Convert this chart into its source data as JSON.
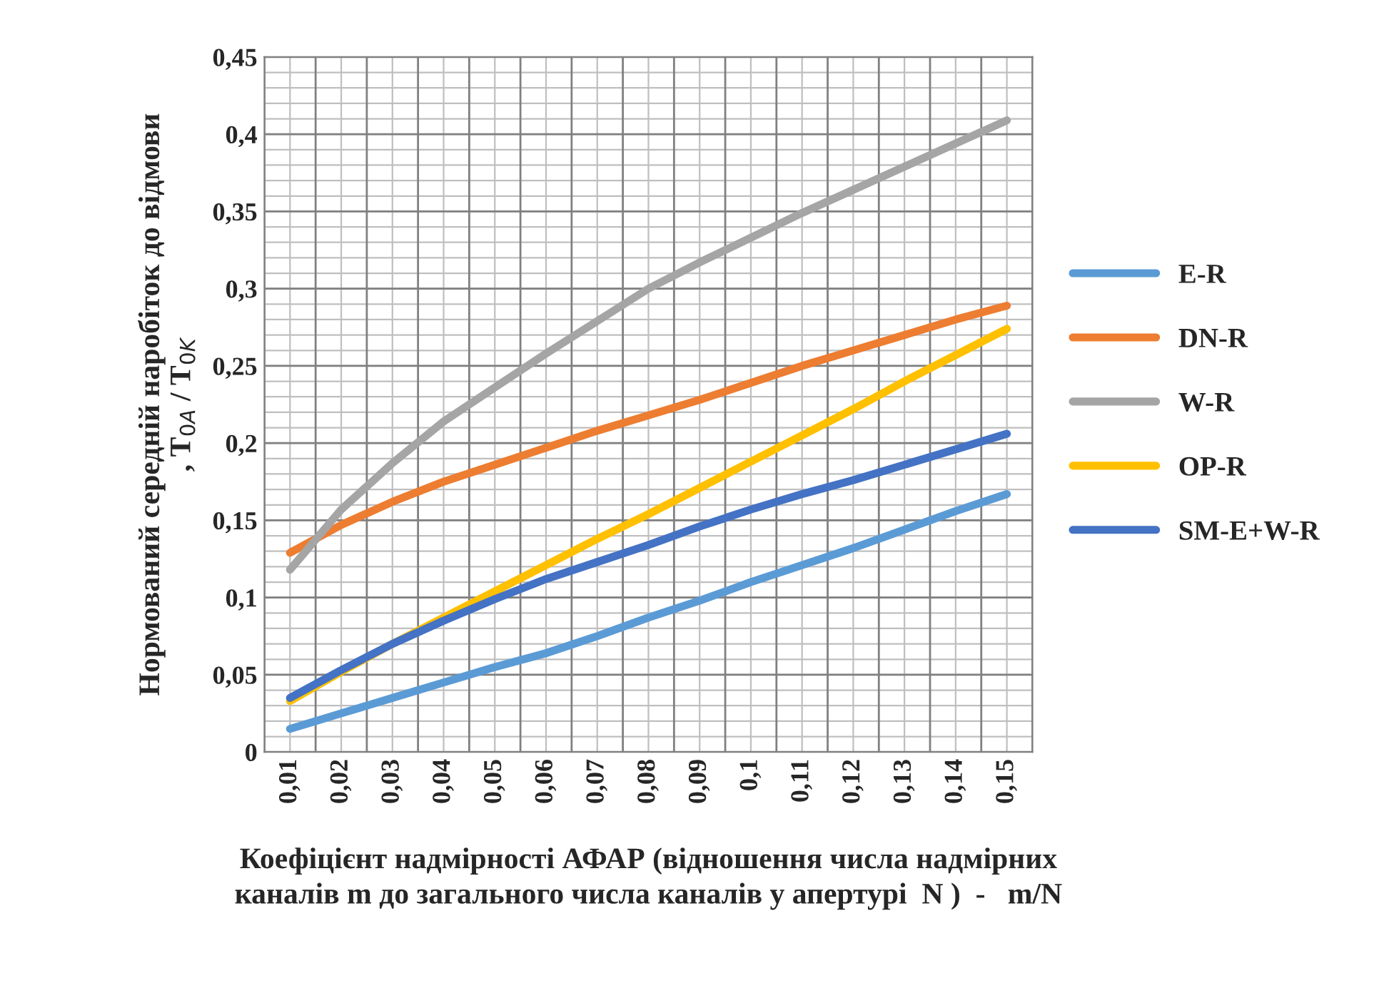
{
  "chart_data": {
    "type": "line",
    "xlabel": "Коефіцієнт надмірності АФАР (відношення числа надмірних\nканалів m до загального числа каналів у апертурі  N )  -   m/N",
    "ylabel": "Нормований середній наробіток до відмови\n, T$_{0A}$ / T$_{0K}$",
    "categories": [
      "0,01",
      "0,02",
      "0,03",
      "0,04",
      "0,05",
      "0,06",
      "0,07",
      "0,08",
      "0,09",
      "0,1",
      "0,11",
      "0,12",
      "0,13",
      "0,14",
      "0,15"
    ],
    "series": [
      {
        "name": "E-R",
        "color": "#5b9bd5",
        "values": [
          0.015,
          0.025,
          0.035,
          0.045,
          0.055,
          0.064,
          0.075,
          0.087,
          0.098,
          0.11,
          0.121,
          0.132,
          0.144,
          0.156,
          0.167
        ]
      },
      {
        "name": "DN-R",
        "color": "#ed7d31",
        "values": [
          0.129,
          0.147,
          0.162,
          0.175,
          0.186,
          0.197,
          0.208,
          0.218,
          0.228,
          0.239,
          0.25,
          0.26,
          0.27,
          0.28,
          0.289
        ]
      },
      {
        "name": "W-R",
        "color": "#a5a5a5",
        "values": [
          0.118,
          0.157,
          0.187,
          0.214,
          0.236,
          0.258,
          0.279,
          0.3,
          0.317,
          0.333,
          0.349,
          0.364,
          0.379,
          0.394,
          0.409
        ]
      },
      {
        "name": "OP-R",
        "color": "#ffc000",
        "values": [
          0.033,
          0.052,
          0.07,
          0.087,
          0.104,
          0.121,
          0.138,
          0.154,
          0.171,
          0.188,
          0.205,
          0.222,
          0.24,
          0.257,
          0.274
        ]
      },
      {
        "name": "SM-E+W-R",
        "color": "#4472c4",
        "values": [
          0.035,
          0.053,
          0.07,
          0.085,
          0.099,
          0.112,
          0.123,
          0.134,
          0.146,
          0.157,
          0.167,
          0.176,
          0.186,
          0.196,
          0.206
        ]
      }
    ],
    "ylim": [
      0,
      0.45
    ],
    "yticks": [
      {
        "value": 0,
        "label": "0"
      },
      {
        "value": 0.05,
        "label": "0,05"
      },
      {
        "value": 0.1,
        "label": "0,1"
      },
      {
        "value": 0.15,
        "label": "0,15"
      },
      {
        "value": 0.2,
        "label": "0,2"
      },
      {
        "value": 0.25,
        "label": "0,25"
      },
      {
        "value": 0.3,
        "label": "0,3"
      },
      {
        "value": 0.35,
        "label": "0,35"
      },
      {
        "value": 0.4,
        "label": "0,4"
      },
      {
        "value": 0.45,
        "label": "0,45"
      }
    ],
    "grid": true,
    "legend": "right",
    "marker": "none",
    "line_style": "solid"
  }
}
